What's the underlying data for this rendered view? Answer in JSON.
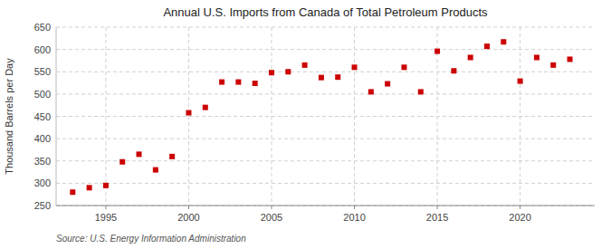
{
  "chart_data": {
    "type": "scatter",
    "title": "Annual U.S. Imports from Canada of Total Petroleum Products",
    "ylabel": "Thousand Barrels per Day",
    "annotations": [
      "Source: U.S. Energy Information Administration"
    ],
    "x": [
      1993,
      1994,
      1995,
      1996,
      1997,
      1998,
      1999,
      2000,
      2001,
      2002,
      2003,
      2004,
      2005,
      2006,
      2007,
      2008,
      2009,
      2010,
      2011,
      2012,
      2013,
      2014,
      2015,
      2016,
      2017,
      2018,
      2019,
      2020,
      2021,
      2022,
      2023
    ],
    "values": [
      280,
      290,
      295,
      348,
      365,
      330,
      360,
      458,
      470,
      527,
      527,
      524,
      548,
      550,
      565,
      537,
      538,
      560,
      505,
      523,
      560,
      505,
      596,
      552,
      582,
      607,
      617,
      529,
      582,
      565,
      578
    ],
    "color": "#cc0000",
    "marker": "square",
    "xlim": [
      1992,
      2024.5
    ],
    "xticks": [
      1995,
      2000,
      2005,
      2010,
      2015,
      2020
    ],
    "ylim": [
      250,
      650
    ],
    "yticks": [
      250,
      300,
      350,
      400,
      450,
      500,
      550,
      600,
      650
    ],
    "grid": true
  }
}
